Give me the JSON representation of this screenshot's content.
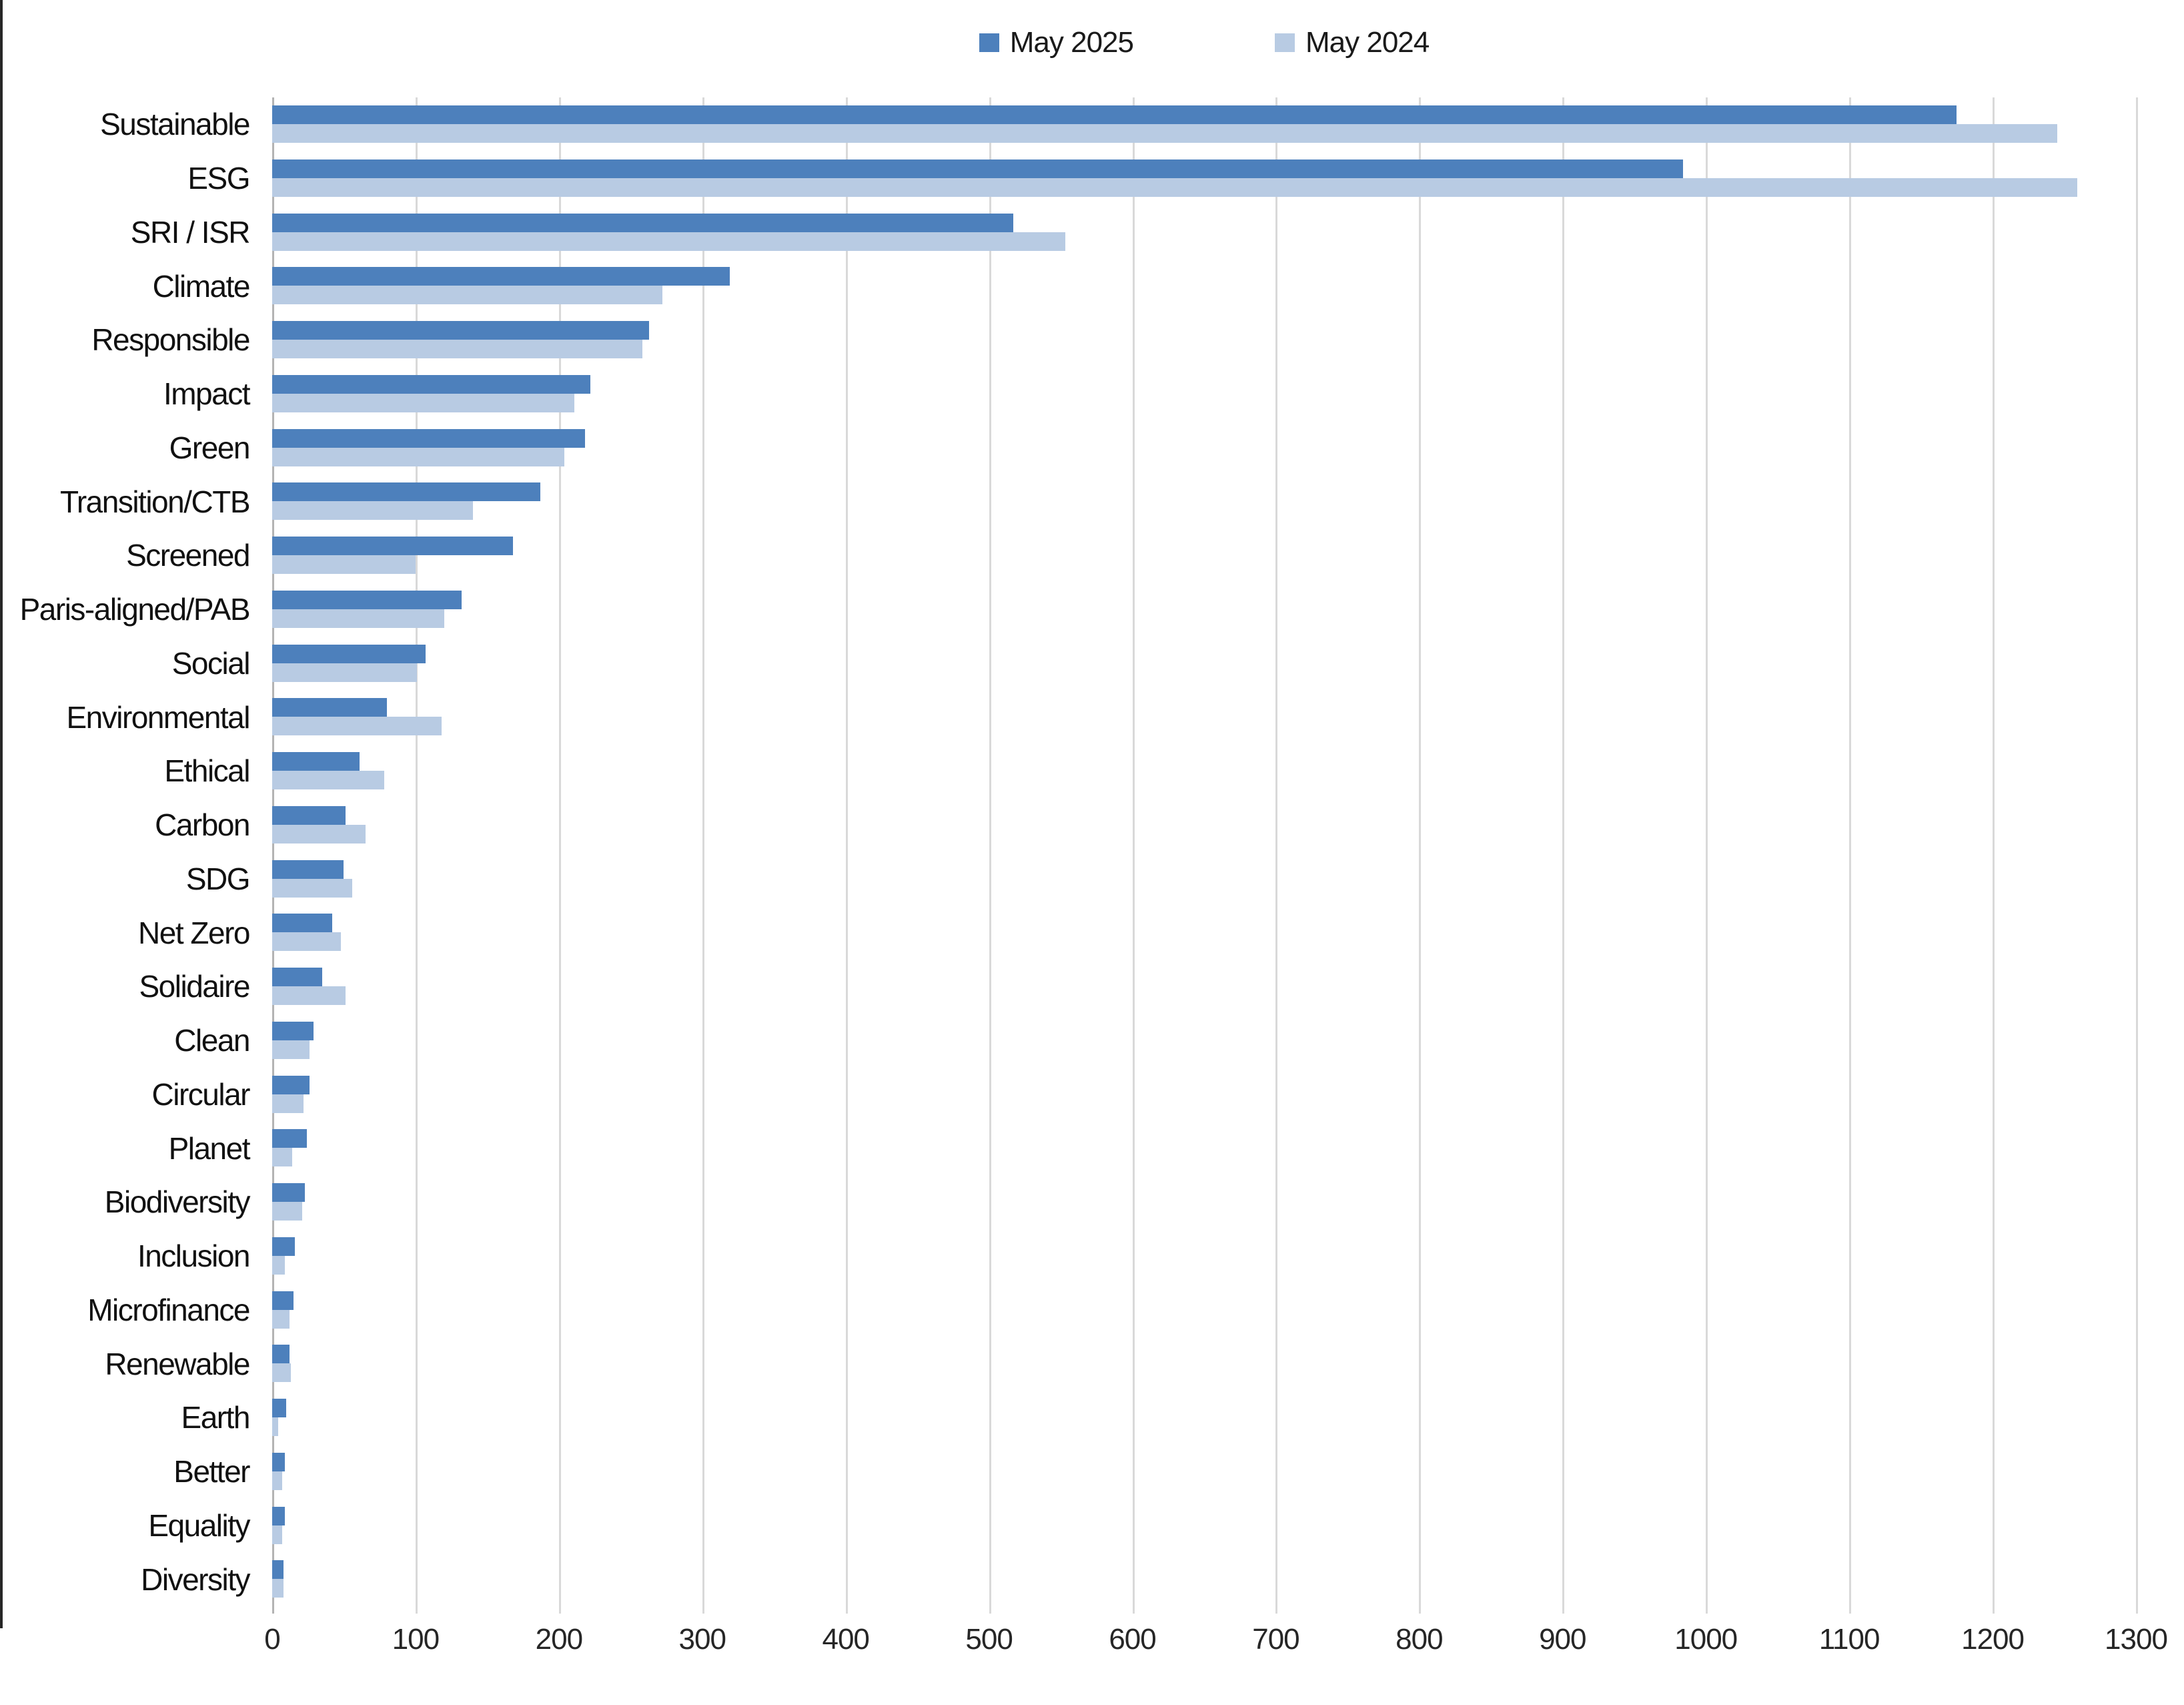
{
  "chart_data": {
    "type": "bar",
    "orientation": "horizontal",
    "title": "",
    "categories": [
      "Sustainable",
      "ESG",
      "SRI / ISR",
      "Climate",
      "Responsible",
      "Impact",
      "Green",
      "Transition/CTB",
      "Screened",
      "Paris-aligned/PAB",
      "Social",
      "Environmental",
      "Ethical",
      "Carbon",
      "SDG",
      "Net Zero",
      "Solidaire",
      "Clean",
      "Circular",
      "Planet",
      "Biodiversity",
      "Inclusion",
      "Microfinance",
      "Renewable",
      "Earth",
      "Better",
      "Equality",
      "Diversity"
    ],
    "series": [
      {
        "name": "May 2025",
        "color": "#4d80bc",
        "values": [
          1175,
          984,
          517,
          319,
          263,
          222,
          218,
          187,
          168,
          132,
          107,
          80,
          61,
          51,
          50,
          42,
          35,
          29,
          26,
          24,
          23,
          16,
          15,
          12,
          10,
          9,
          9,
          8
        ]
      },
      {
        "name": "May 2024",
        "color": "#b8cbe3",
        "values": [
          1245,
          1259,
          553,
          272,
          258,
          211,
          204,
          140,
          100,
          120,
          101,
          118,
          78,
          65,
          56,
          48,
          51,
          26,
          22,
          14,
          21,
          9,
          12,
          13,
          4,
          7,
          7,
          8
        ]
      }
    ],
    "xlim": [
      0,
      1300
    ],
    "xticks": [
      0,
      100,
      200,
      300,
      400,
      500,
      600,
      700,
      800,
      900,
      1000,
      1100,
      1200,
      1300
    ],
    "grid": true,
    "legend_position": "top"
  },
  "colors": {
    "gridline": "#d9d9d9",
    "axis_line": "#b3b3b3",
    "text": "#111111",
    "left_border": "#262626",
    "background": "#ffffff"
  }
}
